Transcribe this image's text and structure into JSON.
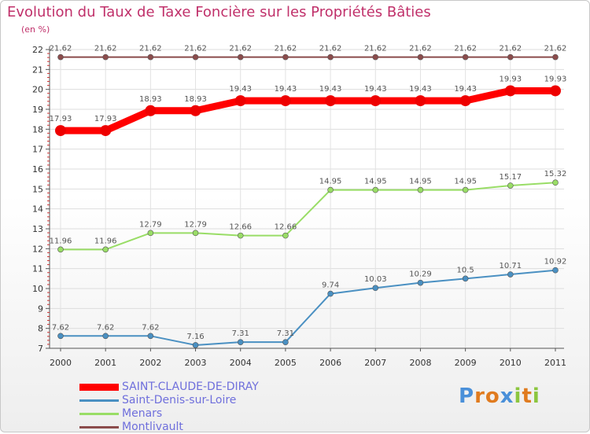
{
  "title": "Evolution du Taux de Taxe Foncière sur les Propriétés Bâties",
  "y_unit": "(en %)",
  "logo": {
    "letters": [
      "P",
      "r",
      "o",
      "x",
      "i",
      "t",
      "i"
    ],
    "colors": [
      "#4a90d9",
      "#e07b1f",
      "#e07b1f",
      "#4a90d9",
      "#8cc63f",
      "#e07b1f",
      "#8cc63f"
    ]
  },
  "chart_data": {
    "type": "line",
    "title": "Evolution du Taux de Taxe Foncière sur les Propriétés Bâties",
    "ylabel": "(en %)",
    "xlabel": "",
    "categories": [
      "2000",
      "2001",
      "2002",
      "2003",
      "2004",
      "2005",
      "2006",
      "2007",
      "2008",
      "2009",
      "2010",
      "2011"
    ],
    "ylim": [
      7,
      22
    ],
    "yticks": [
      "7",
      "8",
      "9",
      "10",
      "11",
      "12",
      "13",
      "14",
      "15",
      "16",
      "17",
      "18",
      "19",
      "20",
      "21",
      "22"
    ],
    "series": [
      {
        "name": "SAINT-CLAUDE-DE-DIRAY",
        "color": "#ff0000",
        "bold": true,
        "values": [
          17.93,
          17.93,
          18.93,
          18.93,
          19.43,
          19.43,
          19.43,
          19.43,
          19.43,
          19.43,
          19.93,
          19.93
        ],
        "labels": [
          "17.93",
          "17.93",
          "18.93",
          "18.93",
          "19.43",
          "19.43",
          "19.43",
          "19.43",
          "19.43",
          "19.43",
          "19.93",
          "19.93"
        ]
      },
      {
        "name": "Saint-Denis-sur-Loire",
        "color": "#4a90c2",
        "bold": false,
        "values": [
          7.62,
          7.62,
          7.62,
          7.16,
          7.31,
          7.31,
          9.74,
          10.03,
          10.29,
          10.5,
          10.71,
          10.92
        ],
        "labels": [
          "7.62",
          "7.62",
          "7.62",
          "7.16",
          "7.31",
          "7.31",
          "9.74",
          "10.03",
          "10.29",
          "10.5",
          "10.71",
          "10.92"
        ]
      },
      {
        "name": "Menars",
        "color": "#99dd66",
        "bold": false,
        "values": [
          11.96,
          11.96,
          12.79,
          12.79,
          12.66,
          12.66,
          14.95,
          14.95,
          14.95,
          14.95,
          15.17,
          15.32
        ],
        "labels": [
          "11.96",
          "11.96",
          "12.79",
          "12.79",
          "12.66",
          "12.66",
          "14.95",
          "14.95",
          "14.95",
          "14.95",
          "15.17",
          "15.32"
        ]
      },
      {
        "name": "Montlivault",
        "color": "#8b4c4c",
        "bold": false,
        "values": [
          21.62,
          21.62,
          21.62,
          21.62,
          21.62,
          21.62,
          21.62,
          21.62,
          21.62,
          21.62,
          21.62,
          21.62
        ],
        "labels": [
          "21.62",
          "21.62",
          "21.62",
          "21.62",
          "21.62",
          "21.62",
          "21.62",
          "21.62",
          "21.62",
          "21.62",
          "21.62",
          "21.62"
        ]
      }
    ],
    "legend_position": "bottom-left"
  }
}
